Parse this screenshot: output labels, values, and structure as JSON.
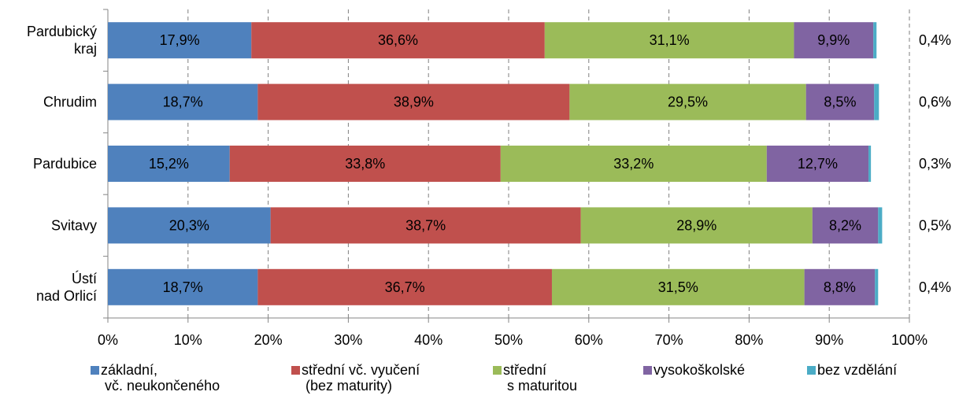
{
  "chart_data": {
    "type": "bar",
    "orientation": "horizontal",
    "stacked": "percent",
    "title": "",
    "categories": [
      "Pardubický kraj",
      "Chrudim",
      "Pardubice",
      "Svitavy",
      "Ústí nad Orlicí"
    ],
    "category_lines": [
      [
        "Pardubický",
        "kraj"
      ],
      [
        "Chrudim"
      ],
      [
        "Pardubice"
      ],
      [
        "Svitavy"
      ],
      [
        "Ústí",
        "nad Orlicí"
      ]
    ],
    "series": [
      {
        "name": "základní, vč. neukončeného",
        "legend_lines": [
          "základní,",
          "vč. neukončeného"
        ],
        "color": "#4F81BD",
        "values": [
          17.9,
          18.7,
          15.2,
          20.3,
          18.7
        ],
        "labels": [
          "17,9%",
          "18,7%",
          "15,2%",
          "20,3%",
          "18,7%"
        ]
      },
      {
        "name": "střední vč. vyučení (bez maturity)",
        "legend_lines": [
          "střední vč. vyučení",
          "(bez maturity)"
        ],
        "color": "#C0504D",
        "values": [
          36.6,
          38.9,
          33.8,
          38.7,
          36.7
        ],
        "labels": [
          "36,6%",
          "38,9%",
          "33,8%",
          "38,7%",
          "36,7%"
        ]
      },
      {
        "name": "střední s maturitou",
        "legend_lines": [
          "střední",
          "s maturitou"
        ],
        "color": "#9BBB59",
        "values": [
          31.1,
          29.5,
          33.2,
          28.9,
          31.5
        ],
        "labels": [
          "31,1%",
          "29,5%",
          "33,2%",
          "28,9%",
          "31,5%"
        ]
      },
      {
        "name": "vysokoškolské",
        "legend_lines": [
          "vysokoškolské"
        ],
        "color": "#8064A2",
        "values": [
          9.9,
          8.5,
          12.7,
          8.2,
          8.8
        ],
        "labels": [
          "9,9%",
          "8,5%",
          "12,7%",
          "8,2%",
          "8,8%"
        ]
      },
      {
        "name": "bez vzdělání",
        "legend_lines": [
          "bez vzdělání"
        ],
        "color": "#4BACC6",
        "values": [
          0.4,
          0.6,
          0.3,
          0.5,
          0.4
        ],
        "labels": [
          "0,4%",
          "0,6%",
          "0,3%",
          "0,5%",
          "0,4%"
        ]
      }
    ],
    "x_ticks": [
      "0%",
      "10%",
      "20%",
      "30%",
      "40%",
      "50%",
      "60%",
      "70%",
      "80%",
      "90%",
      "100%"
    ],
    "xlim": [
      0,
      100
    ],
    "grid": "vertical dashed",
    "legend_position": "bottom"
  }
}
